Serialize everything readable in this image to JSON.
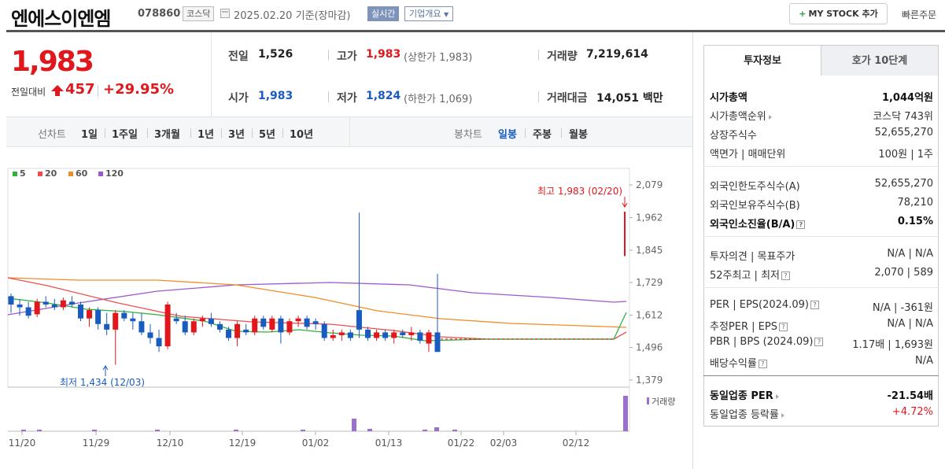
{
  "header": {
    "stock_name": "엔에스이엔엠",
    "stock_code": "078860",
    "market": "코스닥",
    "date_text": "2025.02.20  기준(장마감)",
    "realtime_label": "실시간",
    "company_label": "기업개요",
    "mystock_label": "MY STOCK 추가",
    "quick_order": "빠른주문"
  },
  "price": {
    "current": "1,983",
    "prev_label": "전일대비",
    "change": "457",
    "change_pct": "+29.95%"
  },
  "summary": {
    "prev_close_label": "전일",
    "prev_close": "1,526",
    "high_label": "고가",
    "high": "1,983",
    "upper_limit": "(상한가 1,983)",
    "volume_label": "거래량",
    "volume": "7,219,614",
    "open_label": "시가",
    "open": "1,983",
    "low_label": "저가",
    "low": "1,824",
    "lower_limit": "(하한가 1,069)",
    "amount_label": "거래대금",
    "amount": "14,051",
    "amount_unit": "백만"
  },
  "period_bar": {
    "line_label": "선차트",
    "line_items": [
      "1일",
      "1주일",
      "3개월",
      "1년",
      "3년",
      "5년",
      "10년"
    ],
    "candle_label": "봉차트",
    "candle_items": [
      "일봉",
      "주봉",
      "월봉"
    ],
    "candle_active": 0
  },
  "tabs": [
    "투자정보",
    "호가 10단계"
  ],
  "invest": {
    "mcap_label": "시가총액",
    "mcap": "1,044억원",
    "mcap_rank_label": "시가총액순위",
    "mcap_rank": "코스닥 743위",
    "shares_label": "상장주식수",
    "shares": "52,655,270",
    "par_label": "액면가 | 매매단위",
    "par": "100원 | 1주",
    "foreign_limit_label": "외국인한도주식수(A)",
    "foreign_limit": "52,655,270",
    "foreign_hold_label": "외국인보유주식수(B)",
    "foreign_hold": "78,210",
    "foreign_ratio_label": "외국인소진율(B/A)",
    "foreign_ratio": "0.15%",
    "opinion_label": "투자의견 | 목표주가",
    "opinion": "N/A | N/A",
    "w52_label": "52주최고 | 최저",
    "w52": "2,070 | 589",
    "per_label": "PER | EPS(2024.09)",
    "per": "N/A | -361원",
    "est_per_label": "추정PER | EPS",
    "est_per": "N/A | N/A",
    "pbr_label": "PBR | BPS (2024.09)",
    "pbr": "1.17배 | 1,693원",
    "div_label": "배당수익률",
    "div": "N/A",
    "ind_per_label": "동일업종 PER",
    "ind_per": "-21.54배",
    "ind_rate_label": "동일업종 등락률",
    "ind_rate": "+4.72%"
  },
  "chart_data": {
    "type": "candlestick",
    "legend": [
      {
        "name": "5",
        "color": "#2fb23a"
      },
      {
        "name": "20",
        "color": "#ee4e4e"
      },
      {
        "name": "60",
        "color": "#f28b2a"
      },
      {
        "name": "120",
        "color": "#9b59d0"
      }
    ],
    "y_ticks": [
      2079,
      1962,
      1845,
      1729,
      1612,
      1496,
      1379
    ],
    "x_ticks": [
      "11/20",
      "11/29",
      "12/10",
      "12/19",
      "01/02",
      "01/13",
      "01/22",
      "02/03",
      "02/12"
    ],
    "high_annotation": "최고 1,983 (02/20)",
    "low_annotation": "최저 1,434 (12/03)",
    "volume_label": "거래량",
    "up_color": "#e0171c",
    "down_color": "#1a5bbf"
  }
}
